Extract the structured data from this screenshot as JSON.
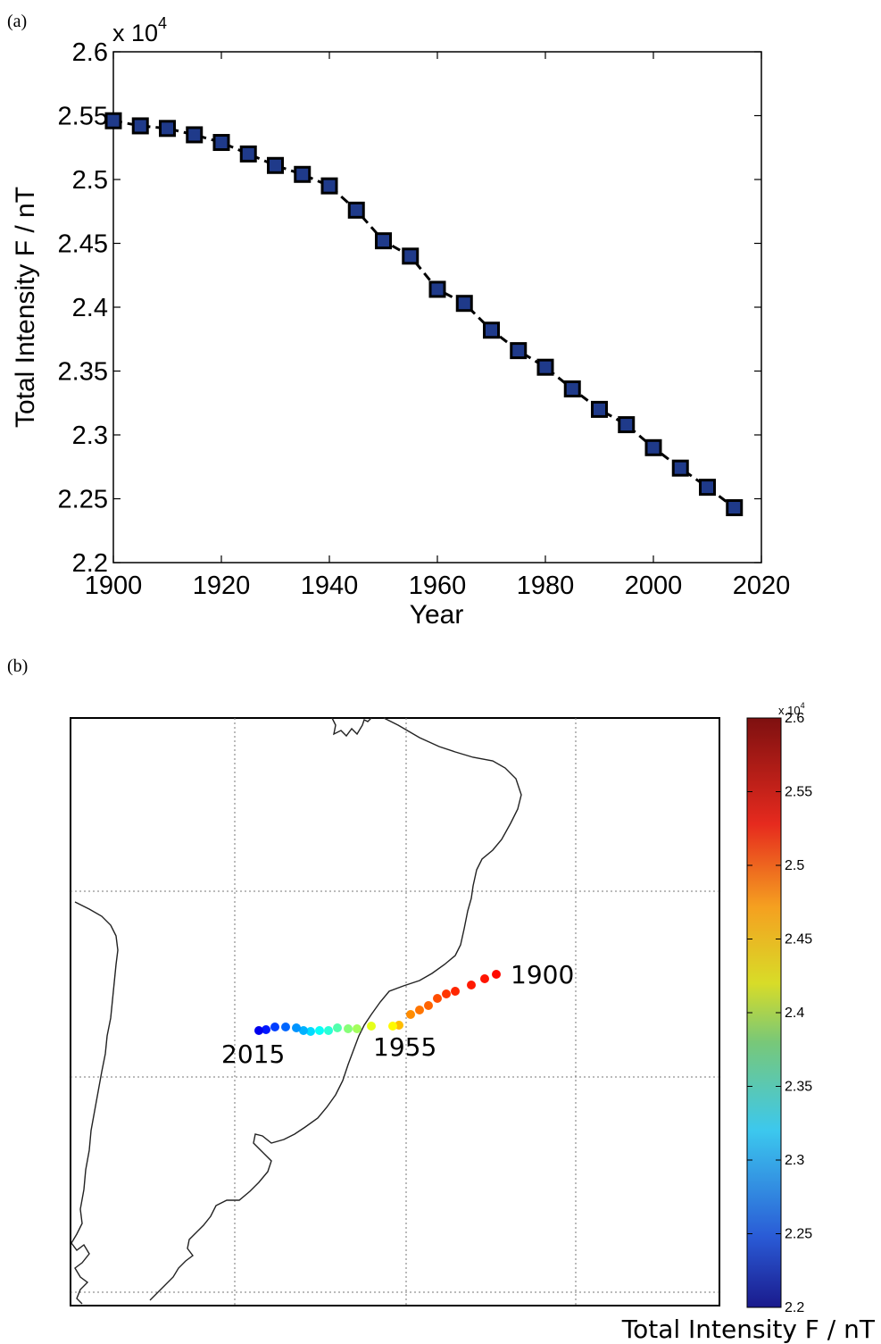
{
  "panels": {
    "a_label": "(a)",
    "b_label": "(b)"
  },
  "chart_data": [
    {
      "type": "line",
      "ylabel": "Total Intensity F / nT",
      "xlabel": "Year",
      "y_exponent": "x 10",
      "y_exponent_power": "4",
      "xlim": [
        1900,
        2020
      ],
      "ylim": [
        2.2,
        2.6
      ],
      "x_ticks": [
        "1900",
        "1920",
        "1940",
        "1960",
        "1980",
        "2000",
        "2020"
      ],
      "y_ticks": [
        "2.2",
        "2.25",
        "2.3",
        "2.35",
        "2.4",
        "2.45",
        "2.5",
        "2.55",
        "2.6"
      ],
      "grid": false,
      "marker": "square",
      "line_style": "dashed",
      "marker_color": "#1f3a8a",
      "series": [
        {
          "x": [
            1900,
            1905,
            1910,
            1915,
            1920,
            1925,
            1930,
            1935,
            1940,
            1945,
            1950,
            1955,
            1960,
            1965,
            1970,
            1975,
            1980,
            1985,
            1990,
            1995,
            2000,
            2005,
            2010,
            2015
          ],
          "values": [
            2.546,
            2.542,
            2.54,
            2.535,
            2.529,
            2.52,
            2.511,
            2.504,
            2.495,
            2.476,
            2.452,
            2.44,
            2.414,
            2.403,
            2.382,
            2.366,
            2.353,
            2.336,
            2.32,
            2.308,
            2.29,
            2.274,
            2.259,
            2.243
          ]
        }
      ]
    },
    {
      "type": "scatter",
      "map": true,
      "colorbar_label": "Total Intensity F / nT",
      "colorbar_exponent": "x 10",
      "colorbar_exponent_power": "4",
      "colorbar_range": [
        2.2,
        2.6
      ],
      "colorbar_ticks": [
        "2.6",
        "2.55",
        "2.5",
        "2.45",
        "2.4",
        "2.35",
        "2.3",
        "2.25",
        "2.2"
      ],
      "colormap": "jet",
      "annotations": [
        "1900",
        "1955",
        "2015"
      ],
      "grid": true
    }
  ]
}
